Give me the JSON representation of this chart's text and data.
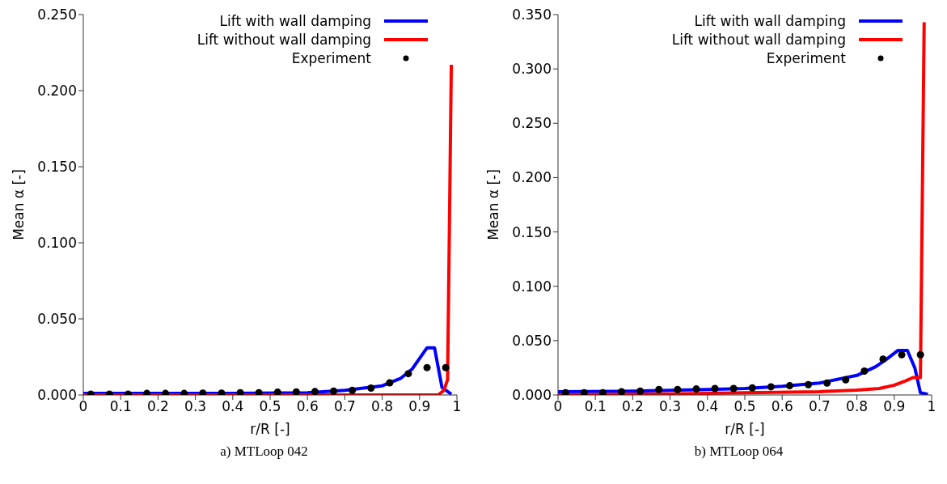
{
  "chart_data": [
    {
      "type": "line",
      "title": "a) MTLoop 042",
      "xlabel": "r/R [-]",
      "ylabel": "Mean α [-]",
      "xlim": [
        0,
        1
      ],
      "ylim": [
        0,
        0.25
      ],
      "xticks": [
        0,
        0.1,
        0.2,
        0.3,
        0.4,
        0.5,
        0.6,
        0.7,
        0.8,
        0.9,
        1
      ],
      "yticks": [
        {
          "value": 0,
          "label": "0.000"
        },
        {
          "value": 0.05,
          "label": "0.050"
        },
        {
          "value": 0.1,
          "label": "0.100"
        },
        {
          "value": 0.15,
          "label": "0.150"
        },
        {
          "value": 0.2,
          "label": "0.200"
        },
        {
          "value": 0.25,
          "label": "0.250"
        }
      ],
      "legend": "top right",
      "grid": false,
      "series": [
        {
          "name": "Lift with wall damping",
          "color": "#0000ff",
          "marker": "none",
          "x": [
            0.0,
            0.2,
            0.4,
            0.6,
            0.7,
            0.8,
            0.85,
            0.88,
            0.9,
            0.92,
            0.94,
            0.96,
            0.985
          ],
          "values": [
            0.001,
            0.001,
            0.001,
            0.0015,
            0.003,
            0.006,
            0.011,
            0.017,
            0.024,
            0.031,
            0.031,
            0.005,
            0.0005
          ]
        },
        {
          "name": "Lift without wall damping",
          "color": "#ff0000",
          "marker": "none",
          "x": [
            0.0,
            0.5,
            0.95,
            0.965,
            0.975,
            0.985
          ],
          "values": [
            0,
            0,
            0,
            0.003,
            0.01,
            0.217
          ]
        },
        {
          "name": "Experiment",
          "type": "scatter",
          "color": "#000000",
          "marker": "circle",
          "x": [
            0.02,
            0.07,
            0.12,
            0.17,
            0.22,
            0.27,
            0.32,
            0.37,
            0.42,
            0.47,
            0.52,
            0.57,
            0.62,
            0.67,
            0.72,
            0.77,
            0.82,
            0.87,
            0.92,
            0.97
          ],
          "values": [
            0.0005,
            0.0005,
            0.0005,
            0.001,
            0.001,
            0.001,
            0.0012,
            0.0012,
            0.0015,
            0.0015,
            0.0018,
            0.002,
            0.0022,
            0.0025,
            0.003,
            0.0045,
            0.008,
            0.014,
            0.018,
            0.018
          ]
        }
      ]
    },
    {
      "type": "line",
      "title": "b) MTLoop 064",
      "xlabel": "r/R [-]",
      "ylabel": "Mean α [-]",
      "xlim": [
        0,
        1
      ],
      "ylim": [
        0,
        0.35
      ],
      "xticks": [
        0,
        0.1,
        0.2,
        0.3,
        0.4,
        0.5,
        0.6,
        0.7,
        0.8,
        0.9,
        1
      ],
      "yticks": [
        {
          "value": 0,
          "label": "0.000"
        },
        {
          "value": 0.05,
          "label": "0.050"
        },
        {
          "value": 0.1,
          "label": "0.100"
        },
        {
          "value": 0.15,
          "label": "0.150"
        },
        {
          "value": 0.2,
          "label": "0.200"
        },
        {
          "value": 0.25,
          "label": "0.250"
        },
        {
          "value": 0.3,
          "label": "0.300"
        },
        {
          "value": 0.35,
          "label": "0.350"
        }
      ],
      "legend": "top right",
      "grid": false,
      "series": [
        {
          "name": "Lift with wall damping",
          "color": "#0000ff",
          "marker": "none",
          "x": [
            0.0,
            0.2,
            0.4,
            0.5,
            0.6,
            0.7,
            0.8,
            0.85,
            0.88,
            0.91,
            0.935,
            0.955,
            0.97,
            0.99
          ],
          "values": [
            0.003,
            0.0035,
            0.005,
            0.006,
            0.008,
            0.011,
            0.018,
            0.026,
            0.033,
            0.041,
            0.041,
            0.025,
            0.002,
            0.0005
          ]
        },
        {
          "name": "Lift without wall damping",
          "color": "#ff0000",
          "marker": "none",
          "x": [
            0.0,
            0.3,
            0.5,
            0.7,
            0.8,
            0.86,
            0.9,
            0.93,
            0.95,
            0.97,
            0.98
          ],
          "values": [
            0,
            0.001,
            0.002,
            0.003,
            0.0045,
            0.006,
            0.009,
            0.013,
            0.016,
            0.016,
            0.343
          ]
        },
        {
          "name": "Experiment",
          "type": "scatter",
          "color": "#000000",
          "marker": "circle",
          "x": [
            0.02,
            0.07,
            0.12,
            0.17,
            0.22,
            0.27,
            0.32,
            0.37,
            0.42,
            0.47,
            0.52,
            0.57,
            0.62,
            0.67,
            0.72,
            0.77,
            0.82,
            0.87,
            0.92,
            0.97
          ],
          "values": [
            0.002,
            0.002,
            0.002,
            0.003,
            0.0035,
            0.005,
            0.005,
            0.0055,
            0.006,
            0.006,
            0.0065,
            0.0075,
            0.0085,
            0.0095,
            0.011,
            0.014,
            0.022,
            0.033,
            0.037,
            0.037
          ]
        }
      ]
    }
  ]
}
